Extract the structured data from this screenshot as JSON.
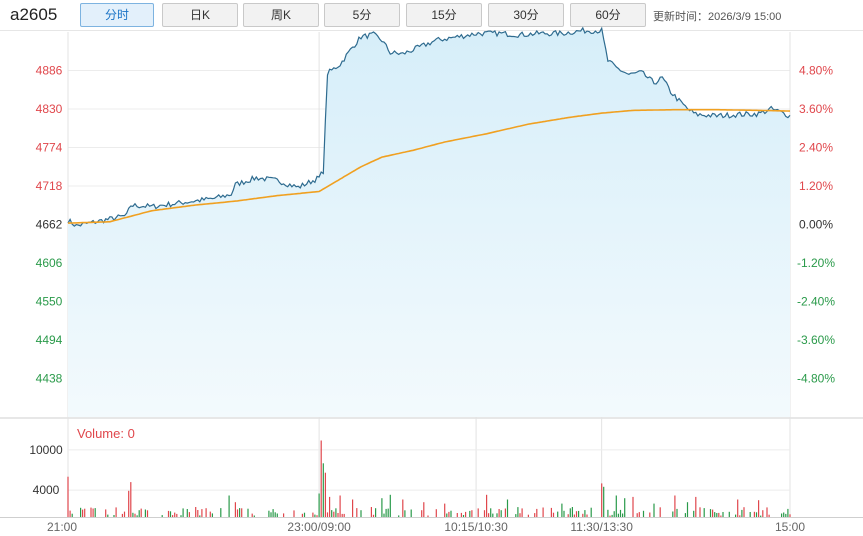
{
  "symbol": "a2605",
  "tabs": [
    {
      "label": "分时",
      "active": true
    },
    {
      "label": "日K",
      "active": false
    },
    {
      "label": "周K",
      "active": false
    },
    {
      "label": "5分",
      "active": false
    },
    {
      "label": "15分",
      "active": false
    },
    {
      "label": "30分",
      "active": false
    },
    {
      "label": "60分",
      "active": false
    }
  ],
  "update_label": "更新时间：2026/3/9 15:00",
  "colors": {
    "price": "#2e6b8f",
    "avg": "#f0a020",
    "up": "#e0474c",
    "down": "#2a9a4a",
    "fill": "#e1f3fb"
  },
  "chart_data": {
    "type": "line",
    "base_price": 4662,
    "price_ticks": [
      4886,
      4830,
      4774,
      4718,
      4662,
      4606,
      4550,
      4494,
      4438
    ],
    "pct_ticks": [
      "4.80%",
      "3.60%",
      "2.40%",
      "1.20%",
      "0.00%",
      "-1.20%",
      "-2.40%",
      "-3.60%",
      "-4.80%"
    ],
    "x_labels": [
      "21:00",
      "23:00/09:00",
      "10:15/10:30",
      "11:30/13:30",
      "15:00"
    ],
    "x_label_pos": [
      0,
      120,
      195,
      255,
      345
    ],
    "ylim": [
      4382,
      4942
    ],
    "volume_label": "Volume: 0",
    "volume_ticks": [
      10000,
      4000
    ],
    "volume_ylim": [
      0,
      14000
    ],
    "n_minutes": 346,
    "price_keypoints": [
      [
        0,
        4668
      ],
      [
        4,
        4660
      ],
      [
        10,
        4664
      ],
      [
        20,
        4670
      ],
      [
        28,
        4675
      ],
      [
        30,
        4690
      ],
      [
        40,
        4688
      ],
      [
        50,
        4692
      ],
      [
        60,
        4696
      ],
      [
        70,
        4700
      ],
      [
        78,
        4706
      ],
      [
        80,
        4720
      ],
      [
        90,
        4730
      ],
      [
        100,
        4726
      ],
      [
        110,
        4716
      ],
      [
        120,
        4730
      ],
      [
        122,
        4740
      ],
      [
        124,
        4882
      ],
      [
        130,
        4895
      ],
      [
        136,
        4920
      ],
      [
        140,
        4935
      ],
      [
        146,
        4938
      ],
      [
        150,
        4930
      ],
      [
        154,
        4912
      ],
      [
        160,
        4910
      ],
      [
        168,
        4920
      ],
      [
        176,
        4930
      ],
      [
        186,
        4935
      ],
      [
        196,
        4940
      ],
      [
        206,
        4940
      ],
      [
        216,
        4938
      ],
      [
        226,
        4940
      ],
      [
        236,
        4940
      ],
      [
        246,
        4944
      ],
      [
        255,
        4944
      ],
      [
        258,
        4900
      ],
      [
        262,
        4890
      ],
      [
        268,
        4880
      ],
      [
        274,
        4883
      ],
      [
        280,
        4868
      ],
      [
        284,
        4875
      ],
      [
        288,
        4855
      ],
      [
        292,
        4842
      ],
      [
        296,
        4830
      ],
      [
        300,
        4822
      ],
      [
        310,
        4820
      ],
      [
        320,
        4822
      ],
      [
        330,
        4823
      ],
      [
        336,
        4830
      ],
      [
        340,
        4826
      ],
      [
        345,
        4820
      ]
    ],
    "avg_keypoints": [
      [
        0,
        4664
      ],
      [
        20,
        4666
      ],
      [
        40,
        4682
      ],
      [
        60,
        4690
      ],
      [
        80,
        4696
      ],
      [
        100,
        4704
      ],
      [
        120,
        4710
      ],
      [
        130,
        4728
      ],
      [
        140,
        4746
      ],
      [
        150,
        4760
      ],
      [
        165,
        4770
      ],
      [
        180,
        4782
      ],
      [
        200,
        4794
      ],
      [
        220,
        4808
      ],
      [
        240,
        4818
      ],
      [
        255,
        4824
      ],
      [
        270,
        4828
      ],
      [
        290,
        4829
      ],
      [
        310,
        4829
      ],
      [
        330,
        4828
      ],
      [
        345,
        4827
      ]
    ],
    "volume_spikes": [
      [
        0,
        6000
      ],
      [
        29,
        3900
      ],
      [
        30,
        5200
      ],
      [
        77,
        3200
      ],
      [
        80,
        2200
      ],
      [
        120,
        3500
      ],
      [
        121,
        11400
      ],
      [
        122,
        8000
      ],
      [
        123,
        6600
      ],
      [
        125,
        3000
      ],
      [
        130,
        3200
      ],
      [
        136,
        2600
      ],
      [
        150,
        2800
      ],
      [
        154,
        3300
      ],
      [
        160,
        2600
      ],
      [
        170,
        2200
      ],
      [
        180,
        2000
      ],
      [
        200,
        3300
      ],
      [
        210,
        2600
      ],
      [
        236,
        2000
      ],
      [
        255,
        5000
      ],
      [
        256,
        4500
      ],
      [
        262,
        3200
      ],
      [
        266,
        2800
      ],
      [
        270,
        3000
      ],
      [
        280,
        2000
      ],
      [
        290,
        3200
      ],
      [
        296,
        2200
      ],
      [
        300,
        3000
      ],
      [
        320,
        2600
      ],
      [
        330,
        2500
      ],
      [
        344,
        1200
      ]
    ]
  }
}
